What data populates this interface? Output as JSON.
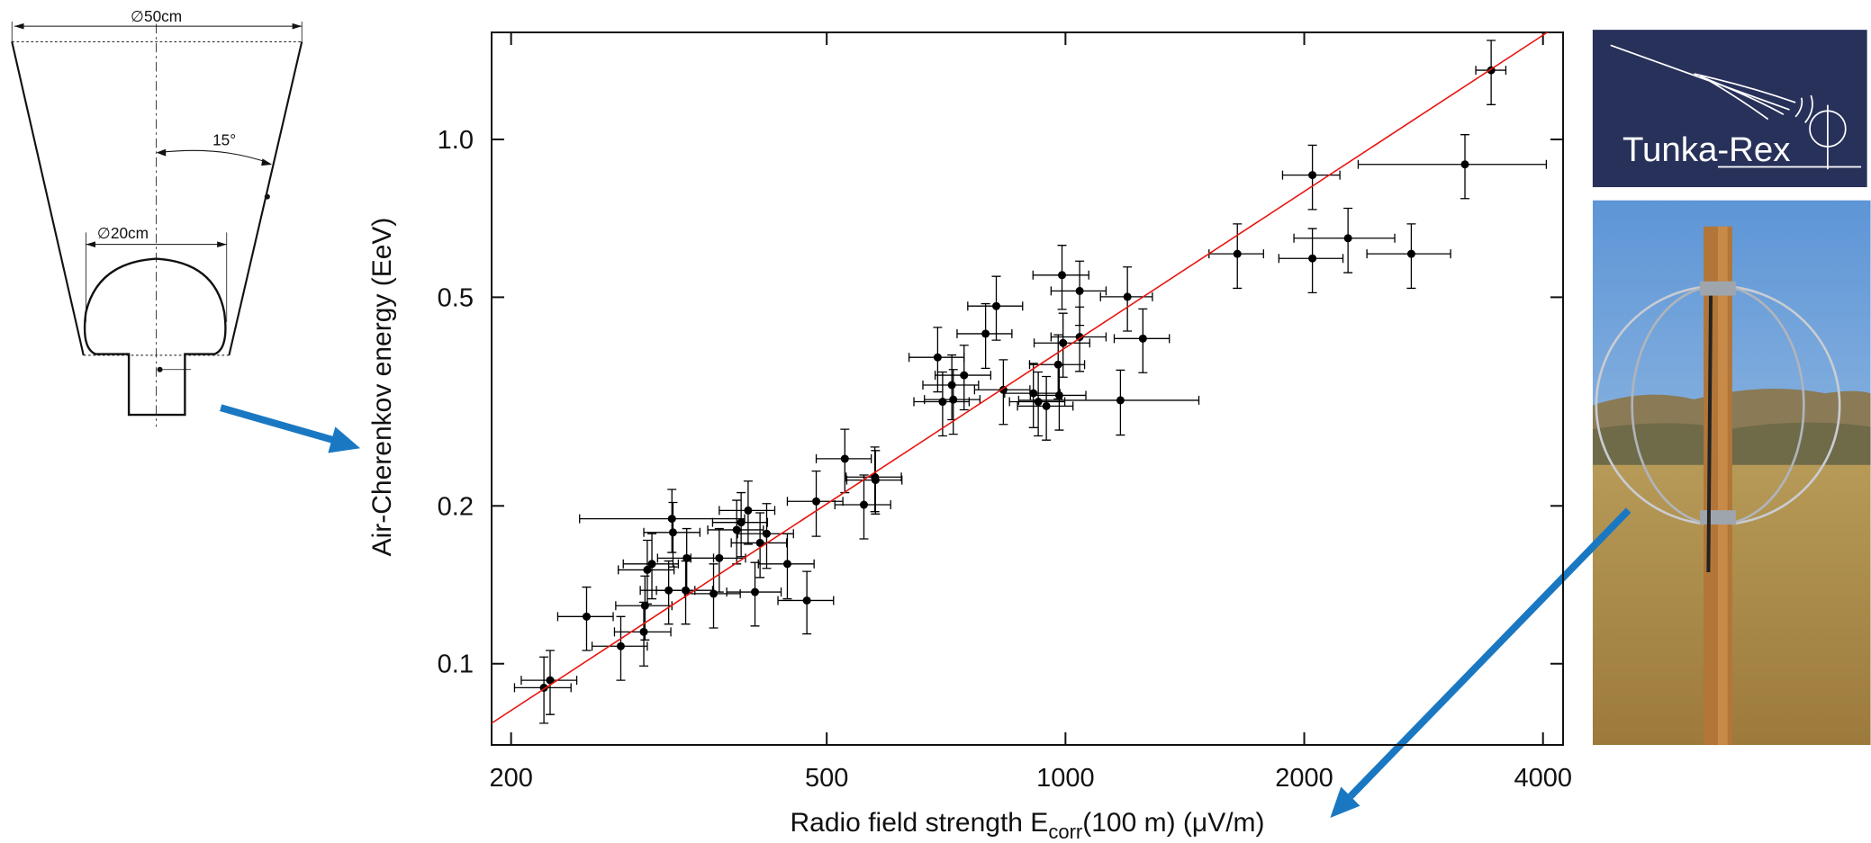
{
  "chart_data": {
    "type": "scatter",
    "xlabel": [
      "Radio field strength E",
      "corr",
      "(100 m) (μV/m)"
    ],
    "ylabel": "Air-Cherenkov energy (EeV)",
    "xscale": "log",
    "yscale": "log",
    "xlim": [
      189,
      4240
    ],
    "ylim": [
      0.07,
      1.6
    ],
    "xticks": [
      200,
      500,
      1000,
      2000,
      4000
    ],
    "yticks": [
      0.1,
      0.2,
      0.5,
      {
        "value": 1,
        "label": "1.0"
      }
    ],
    "series": [
      {
        "mode": "points",
        "color": "#000000",
        "x": [
          220,
          224,
          249,
          275,
          294,
          295,
          297,
          301,
          316,
          319,
          320,
          332,
          333,
          360,
          366,
          385,
          390,
          398,
          406,
          412,
          420,
          446,
          472,
          485,
          527,
          557,
          575,
          576,
          690,
          700,
          719,
          722,
          745,
          793,
          818,
          835,
          911,
          924,
          946,
          979,
          982,
          990,
          993,
          1042,
          1042,
          1173,
          1197,
          1252,
          1647,
          2048,
          2048,
          2271,
          2729,
          3189,
          3441
        ],
        "values": [
          0.09,
          0.093,
          0.123,
          0.108,
          0.115,
          0.129,
          0.151,
          0.155,
          0.138,
          0.189,
          0.178,
          0.138,
          0.159,
          0.136,
          0.159,
          0.18,
          0.186,
          0.196,
          0.137,
          0.17,
          0.177,
          0.155,
          0.132,
          0.204,
          0.246,
          0.201,
          0.227,
          0.224,
          0.384,
          0.316,
          0.34,
          0.319,
          0.355,
          0.426,
          0.481,
          0.333,
          0.328,
          0.316,
          0.31,
          0.372,
          0.325,
          0.551,
          0.409,
          0.514,
          0.42,
          0.318,
          0.501,
          0.417,
          0.605,
          0.855,
          0.593,
          0.648,
          0.605,
          0.896,
          1.355
        ],
        "xerr": [
          18,
          18,
          20,
          22,
          24,
          24,
          24,
          24,
          25,
          75,
          26,
          27,
          27,
          29,
          29,
          31,
          31,
          32,
          32,
          33,
          34,
          36,
          38,
          39,
          42,
          45,
          46,
          46,
          55,
          56,
          58,
          58,
          60,
          63,
          65,
          67,
          73,
          74,
          76,
          78,
          79,
          80,
          80,
          83,
          83,
          300,
          90,
          100,
          130,
          170,
          190,
          330,
          330,
          850,
          150
        ],
        "yerr": [
          0.013,
          0.013,
          0.017,
          0.015,
          0.016,
          0.018,
          0.021,
          0.022,
          0.019,
          0.026,
          0.025,
          0.019,
          0.022,
          0.019,
          0.022,
          0.025,
          0.026,
          0.027,
          0.019,
          0.024,
          0.025,
          0.022,
          0.018,
          0.029,
          0.034,
          0.028,
          0.032,
          0.031,
          0.054,
          0.044,
          0.048,
          0.045,
          0.05,
          0.06,
          0.067,
          0.047,
          0.046,
          0.044,
          0.043,
          0.052,
          0.046,
          0.077,
          0.057,
          0.072,
          0.059,
          0.045,
          0.07,
          0.058,
          0.085,
          0.12,
          0.083,
          0.091,
          0.085,
          0.125,
          0.19
        ]
      },
      {
        "mode": "line",
        "color": "#e8140f",
        "x": [
          189,
          4050
        ],
        "values": [
          0.077,
          1.6
        ]
      }
    ]
  },
  "figure": {
    "diagram_labels": [
      "∅50cm",
      "15°",
      "∅20cm"
    ],
    "logo_text": "Tunka-Rex"
  }
}
